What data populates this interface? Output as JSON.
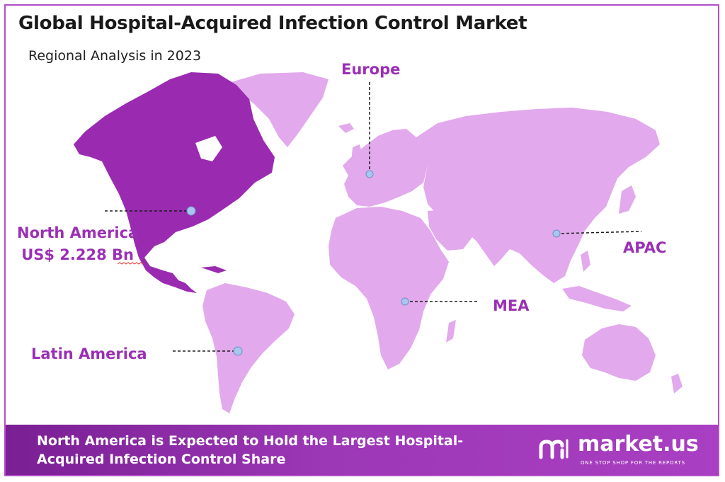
{
  "title": "Global Hospital-Acquired Infection Control Market",
  "subtitle": "Regional Analysis in 2023",
  "regions": {
    "north_america": {
      "label": "North America",
      "value": "US$ 2.228 Bn",
      "highlighted": true
    },
    "europe": {
      "label": "Europe"
    },
    "apac": {
      "label": "APAC"
    },
    "mea": {
      "label": "MEA"
    },
    "latin_america": {
      "label": "Latin America"
    }
  },
  "banner": {
    "line1": "North America is Expected to Hold the Largest Hospital-",
    "line2": "Acquired Infection Control  Share"
  },
  "brand": {
    "name": "market.us",
    "tagline": "ONE STOP SHOP FOR THE REPORTS"
  },
  "colors": {
    "highlight_region": "#9a2bb1",
    "other_regions": "#e2a9ec",
    "label_text": "#9b2fb5",
    "marker": "#a8c6ef",
    "banner": "#9231ad",
    "frame": "#b24fc7"
  },
  "icons": [
    "market-us-logo-icon"
  ]
}
